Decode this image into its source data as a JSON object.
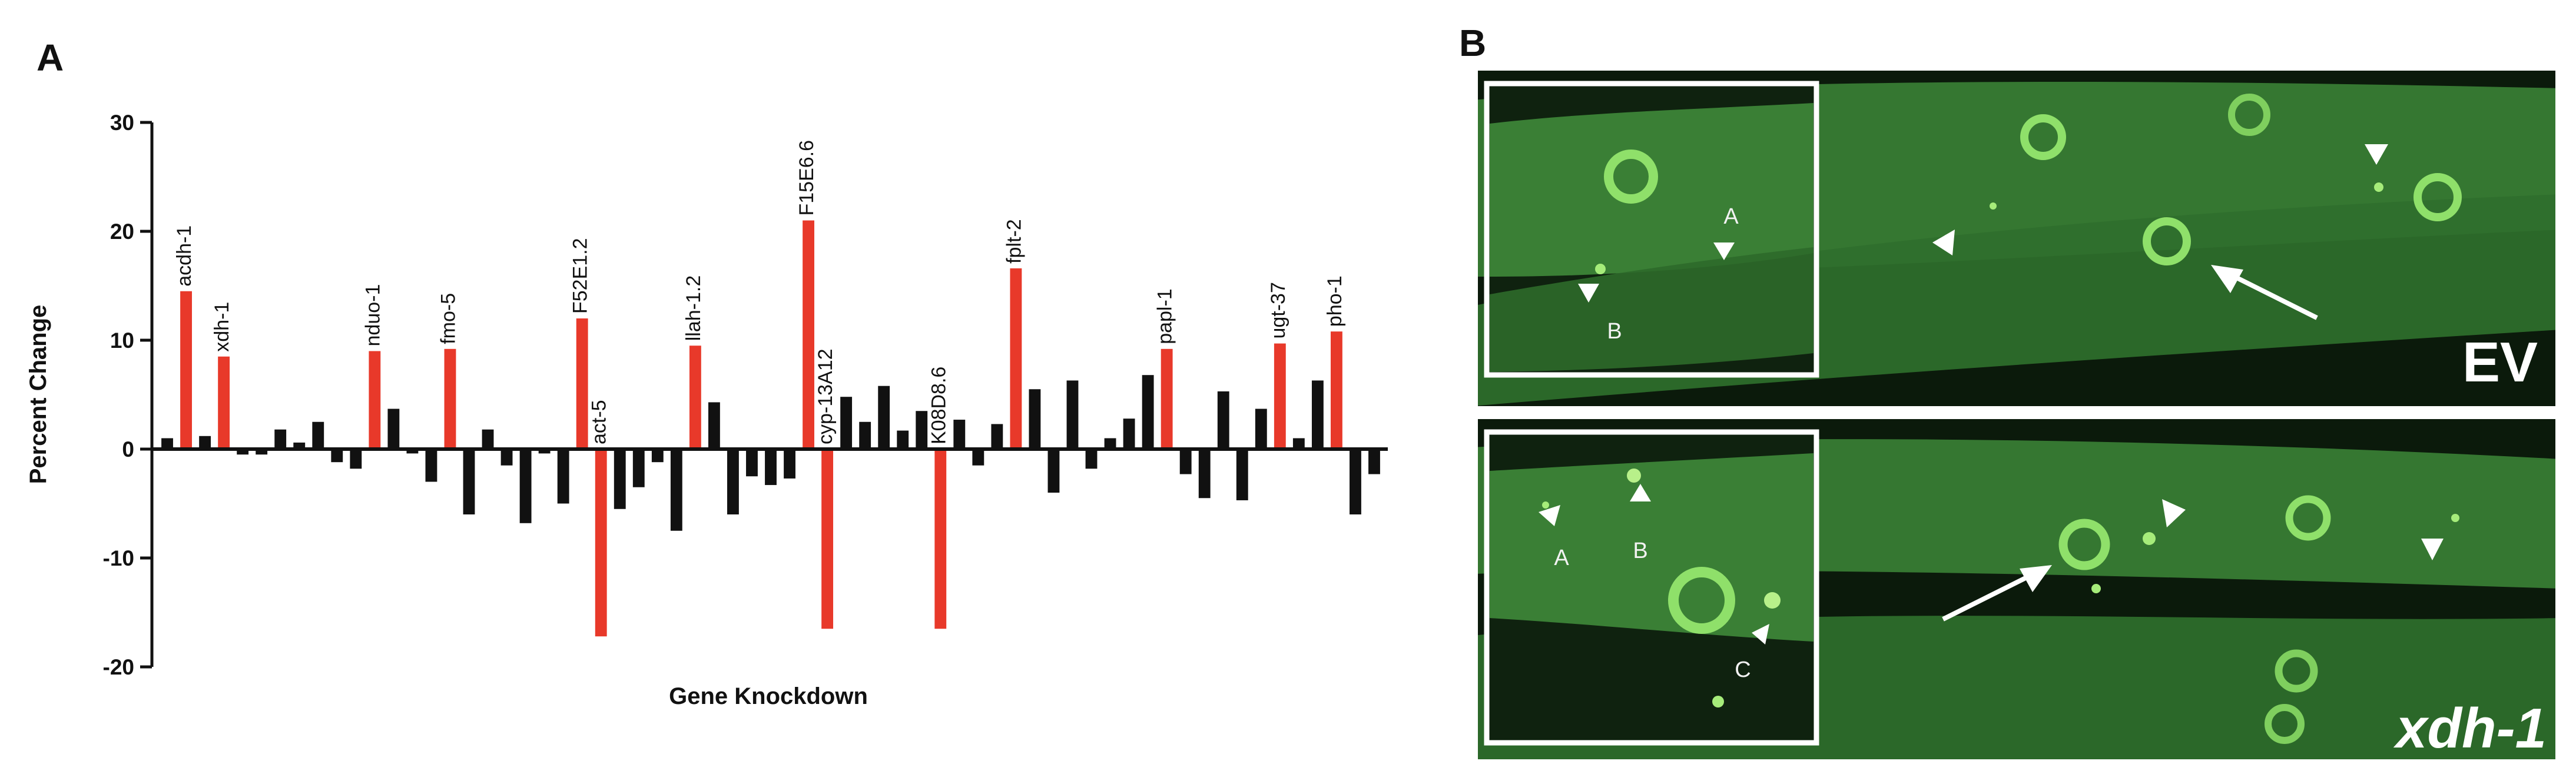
{
  "panel_a_letter": "A",
  "panel_b_letter": "B",
  "chart_data": {
    "type": "bar",
    "title": "",
    "xlabel": "Gene Knockdown",
    "ylabel": "Percent Change",
    "ylim": [
      -20,
      30
    ],
    "yticks": [
      -20,
      -10,
      0,
      10,
      20,
      30
    ],
    "grid": false,
    "colors": {
      "highlight": "#e8392a",
      "other": "#111111"
    },
    "bars": [
      {
        "v": 1.0,
        "hl": false,
        "label": ""
      },
      {
        "v": 14.5,
        "hl": true,
        "label": "acdh-1"
      },
      {
        "v": 1.2,
        "hl": false,
        "label": ""
      },
      {
        "v": 8.5,
        "hl": true,
        "label": "xdh-1"
      },
      {
        "v": -0.5,
        "hl": false,
        "label": ""
      },
      {
        "v": -0.5,
        "hl": false,
        "label": ""
      },
      {
        "v": 1.8,
        "hl": false,
        "label": ""
      },
      {
        "v": 0.6,
        "hl": false,
        "label": ""
      },
      {
        "v": 2.5,
        "hl": false,
        "label": ""
      },
      {
        "v": -1.2,
        "hl": false,
        "label": ""
      },
      {
        "v": -1.8,
        "hl": false,
        "label": ""
      },
      {
        "v": 9.0,
        "hl": true,
        "label": "nduo-1"
      },
      {
        "v": 3.7,
        "hl": false,
        "label": ""
      },
      {
        "v": -0.4,
        "hl": false,
        "label": ""
      },
      {
        "v": -3.0,
        "hl": false,
        "label": ""
      },
      {
        "v": 9.2,
        "hl": true,
        "label": "fmo-5"
      },
      {
        "v": -6.0,
        "hl": false,
        "label": ""
      },
      {
        "v": 1.8,
        "hl": false,
        "label": ""
      },
      {
        "v": -1.5,
        "hl": false,
        "label": ""
      },
      {
        "v": -6.8,
        "hl": false,
        "label": ""
      },
      {
        "v": -0.4,
        "hl": false,
        "label": ""
      },
      {
        "v": -5.0,
        "hl": false,
        "label": ""
      },
      {
        "v": 12.0,
        "hl": true,
        "label": "F52E1.2"
      },
      {
        "v": -17.2,
        "hl": true,
        "label": "act-5"
      },
      {
        "v": -5.5,
        "hl": false,
        "label": ""
      },
      {
        "v": -3.5,
        "hl": false,
        "label": ""
      },
      {
        "v": -1.2,
        "hl": false,
        "label": ""
      },
      {
        "v": -7.5,
        "hl": false,
        "label": ""
      },
      {
        "v": 9.5,
        "hl": true,
        "label": "llah-1.2"
      },
      {
        "v": 4.3,
        "hl": false,
        "label": ""
      },
      {
        "v": -6.0,
        "hl": false,
        "label": ""
      },
      {
        "v": -2.5,
        "hl": false,
        "label": ""
      },
      {
        "v": -3.3,
        "hl": false,
        "label": ""
      },
      {
        "v": -2.7,
        "hl": false,
        "label": ""
      },
      {
        "v": 21.0,
        "hl": true,
        "label": "F15E6.6"
      },
      {
        "v": -16.5,
        "hl": true,
        "label": "cyp-13A12"
      },
      {
        "v": 4.8,
        "hl": false,
        "label": ""
      },
      {
        "v": 2.5,
        "hl": false,
        "label": ""
      },
      {
        "v": 5.8,
        "hl": false,
        "label": ""
      },
      {
        "v": 1.7,
        "hl": false,
        "label": ""
      },
      {
        "v": 3.5,
        "hl": false,
        "label": ""
      },
      {
        "v": -16.5,
        "hl": true,
        "label": "K08D8.6"
      },
      {
        "v": 2.7,
        "hl": false,
        "label": ""
      },
      {
        "v": -1.5,
        "hl": false,
        "label": ""
      },
      {
        "v": 2.3,
        "hl": false,
        "label": ""
      },
      {
        "v": 16.6,
        "hl": true,
        "label": "fplt-2"
      },
      {
        "v": 5.5,
        "hl": false,
        "label": ""
      },
      {
        "v": -4.0,
        "hl": false,
        "label": ""
      },
      {
        "v": 6.3,
        "hl": false,
        "label": ""
      },
      {
        "v": -1.8,
        "hl": false,
        "label": ""
      },
      {
        "v": 1.0,
        "hl": false,
        "label": ""
      },
      {
        "v": 2.8,
        "hl": false,
        "label": ""
      },
      {
        "v": 6.8,
        "hl": false,
        "label": ""
      },
      {
        "v": 9.2,
        "hl": true,
        "label": "papl-1"
      },
      {
        "v": -2.3,
        "hl": false,
        "label": ""
      },
      {
        "v": -4.5,
        "hl": false,
        "label": ""
      },
      {
        "v": 5.3,
        "hl": false,
        "label": ""
      },
      {
        "v": -4.7,
        "hl": false,
        "label": ""
      },
      {
        "v": 3.7,
        "hl": false,
        "label": ""
      },
      {
        "v": 9.7,
        "hl": true,
        "label": "ugt-37"
      },
      {
        "v": 1.0,
        "hl": false,
        "label": ""
      },
      {
        "v": 6.3,
        "hl": false,
        "label": ""
      },
      {
        "v": 10.8,
        "hl": true,
        "label": "pho-1"
      },
      {
        "v": -6.0,
        "hl": false,
        "label": ""
      },
      {
        "v": -2.3,
        "hl": false,
        "label": ""
      }
    ]
  },
  "micrograph": {
    "top_condition": "EV",
    "bottom_condition": "xdh-1",
    "top_inset_labels": [
      "A",
      "B"
    ],
    "bottom_inset_labels": [
      "A",
      "B",
      "C"
    ],
    "colors": {
      "background": "#0b1a0b",
      "tissue": "#3f8a3a",
      "granule": "#a6ec7a",
      "frame": "#ffffff"
    }
  }
}
